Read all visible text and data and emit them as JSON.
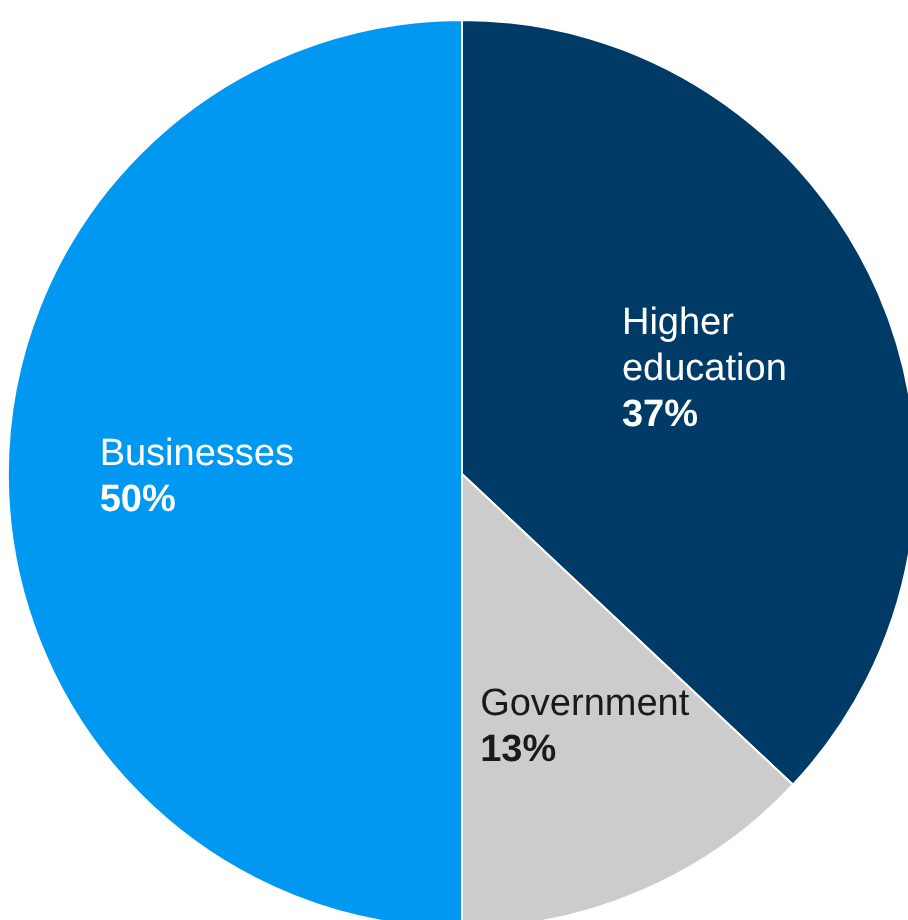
{
  "chart_data": {
    "type": "pie",
    "categories": [
      "Higher education",
      "Government",
      "Businesses"
    ],
    "values": [
      37,
      13,
      50
    ],
    "colors": [
      "#003b68",
      "#cccccc",
      "#0098f0"
    ],
    "value_labels": [
      "37%",
      "13%",
      "50%"
    ]
  }
}
